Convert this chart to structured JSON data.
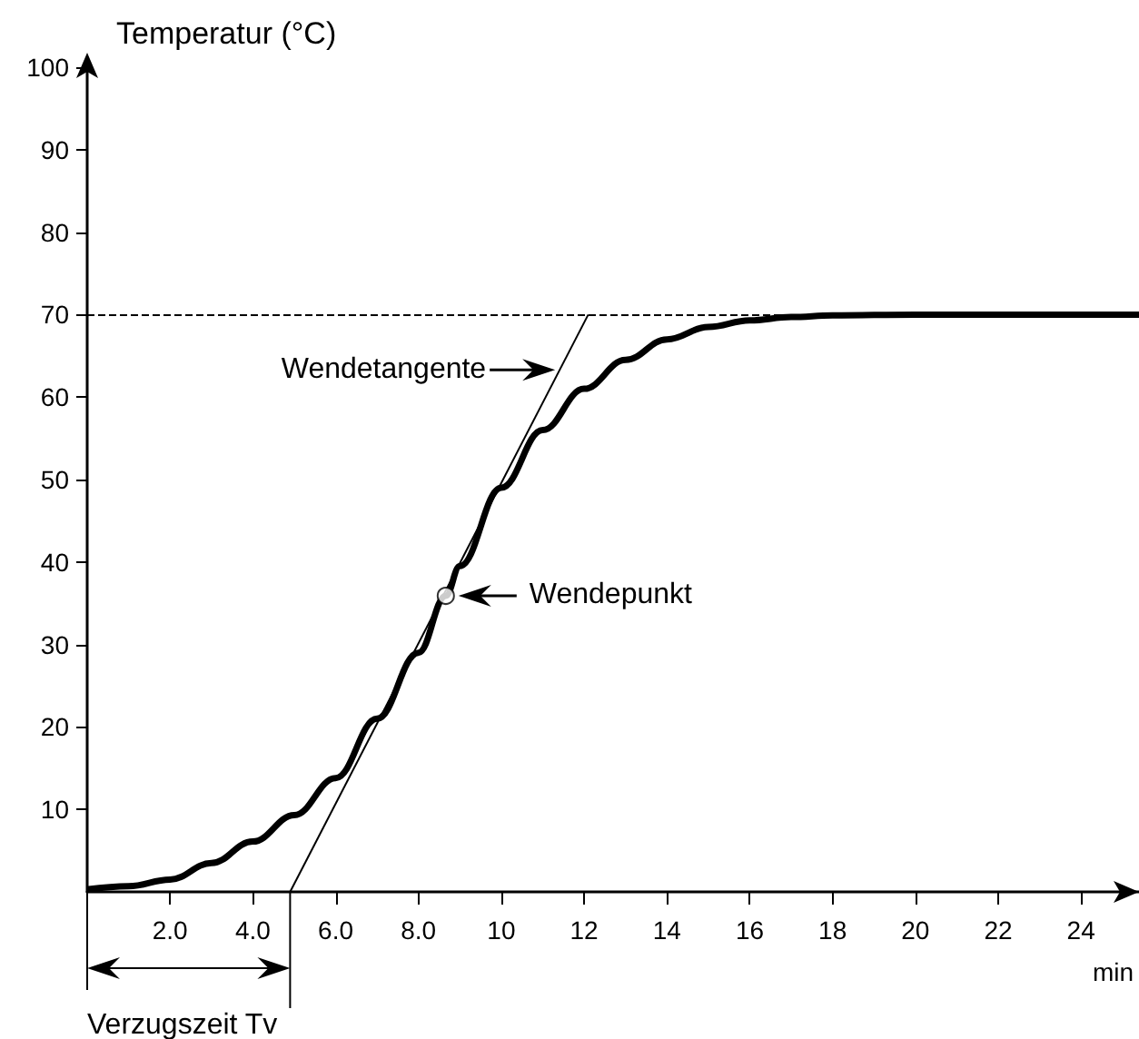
{
  "chart_data": {
    "type": "line",
    "xlabel": "min",
    "ylabel": "Temperatur (°C)",
    "xlim": [
      0,
      25.4
    ],
    "ylim": [
      0,
      100
    ],
    "xticks": [
      {
        "value": 2,
        "label": "2.0"
      },
      {
        "value": 4,
        "label": "4.0"
      },
      {
        "value": 6,
        "label": "6.0"
      },
      {
        "value": 8,
        "label": "8.0"
      },
      10,
      12,
      14,
      16,
      18,
      20,
      22,
      24
    ],
    "yticks": [
      10,
      20,
      30,
      40,
      50,
      60,
      70,
      80,
      90,
      100
    ],
    "series": [
      {
        "color": "#000000",
        "x": [
          0,
          1,
          2,
          3,
          4,
          5,
          6,
          7,
          8,
          8.66,
          9,
          10,
          11,
          12,
          13,
          14,
          15,
          16,
          17,
          18,
          20,
          22,
          24,
          25.4
        ],
        "values": [
          0.3,
          0.7,
          1.5,
          3.5,
          6.1,
          9.3,
          13.8,
          21,
          29,
          35.9,
          39.5,
          49,
          56,
          61,
          64.5,
          67,
          68.5,
          69.3,
          69.7,
          69.9,
          70,
          70,
          70,
          70
        ]
      },
      {
        "type": "line",
        "color": "#000000",
        "x": [
          4.9,
          12.1
        ],
        "values": [
          0,
          70
        ]
      },
      {
        "type": "scatter",
        "color": "#ffffff",
        "marker": "circle",
        "x": [
          8.66
        ],
        "values": [
          35.9
        ]
      }
    ],
    "ref_lines": [
      {
        "axis": "y",
        "value": 70,
        "color": "#000000",
        "line_style": "dashed"
      }
    ],
    "annotations": [
      {
        "text": "Wendetangente",
        "x": 11.3,
        "y": 63.3
      },
      "Wendepunkt",
      "Verzugszeit Tv"
    ]
  }
}
